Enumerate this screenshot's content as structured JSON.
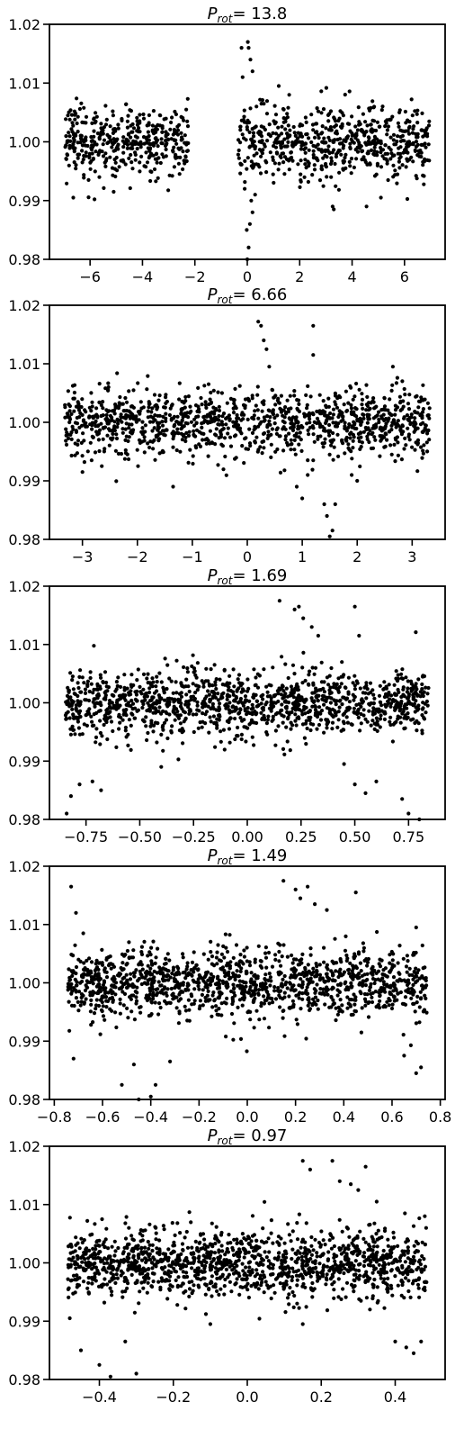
{
  "chart_data": [
    {
      "type": "scatter",
      "title": "P_rot = 13.8",
      "title_symbol": "P",
      "title_sub": "rot",
      "title_value": "= 13.8",
      "xlim": [
        -7.55,
        7.55
      ],
      "ylim": [
        0.98,
        1.02
      ],
      "xticks": [
        -6,
        -4,
        -2,
        0,
        2,
        4,
        6
      ],
      "xtick_labels": [
        "−6",
        "−4",
        "−2",
        "0",
        "2",
        "4",
        "6"
      ],
      "yticks": [
        0.98,
        0.99,
        1.0,
        1.01,
        1.02
      ],
      "ytick_labels": [
        "0.98",
        "0.99",
        "1.00",
        "1.01",
        "1.02"
      ],
      "marker_color": "#000000",
      "point_count": 1050,
      "x_data_ranges": [
        [
          -6.95,
          -2.25
        ],
        [
          -0.35,
          6.95
        ]
      ],
      "baseline_y": 1.0,
      "scatter_sigma": 0.0028,
      "features": [
        {
          "x": 0.02,
          "y": 1.017
        },
        {
          "x": 0.05,
          "y": 1.016
        },
        {
          "x": -0.22,
          "y": 1.016
        },
        {
          "x": -0.18,
          "y": 1.011
        },
        {
          "x": 0.12,
          "y": 1.014
        },
        {
          "x": 0.2,
          "y": 1.012
        },
        {
          "x": 0.35,
          "y": 1.006
        },
        {
          "x": 1.2,
          "y": 1.0095
        },
        {
          "x": 1.6,
          "y": 1.008
        },
        {
          "x": 0.0,
          "y": 0.98
        },
        {
          "x": 0.05,
          "y": 0.982
        },
        {
          "x": -0.02,
          "y": 0.985
        },
        {
          "x": 0.1,
          "y": 0.986
        },
        {
          "x": 0.2,
          "y": 0.988
        },
        {
          "x": 0.15,
          "y": 0.99
        },
        {
          "x": -0.1,
          "y": 0.992
        },
        {
          "x": 0.3,
          "y": 0.991
        },
        {
          "x": 3.3,
          "y": 0.9885
        },
        {
          "x": 4.55,
          "y": 0.989
        },
        {
          "x": -5.1,
          "y": 0.9915
        },
        {
          "x": 5.1,
          "y": 0.9905
        }
      ]
    },
    {
      "type": "scatter",
      "title": "P_rot = 6.66",
      "title_symbol": "P",
      "title_sub": "rot",
      "title_value": "= 6.66",
      "xlim": [
        -3.6,
        3.6
      ],
      "ylim": [
        0.98,
        1.02
      ],
      "xticks": [
        -3,
        -2,
        -1,
        0,
        1,
        2,
        3
      ],
      "xtick_labels": [
        "−3",
        "−2",
        "−1",
        "0",
        "1",
        "2",
        "3"
      ],
      "yticks": [
        0.98,
        0.99,
        1.0,
        1.01,
        1.02
      ],
      "ytick_labels": [
        "0.98",
        "0.99",
        "1.00",
        "1.01",
        "1.02"
      ],
      "marker_color": "#000000",
      "point_count": 1150,
      "x_data_ranges": [
        [
          -3.32,
          3.32
        ]
      ],
      "baseline_y": 1.0,
      "scatter_sigma": 0.0028,
      "features": [
        {
          "x": 0.2,
          "y": 1.0172
        },
        {
          "x": 0.25,
          "y": 1.0165
        },
        {
          "x": 0.3,
          "y": 1.014
        },
        {
          "x": 0.35,
          "y": 1.0125
        },
        {
          "x": 0.4,
          "y": 1.0095
        },
        {
          "x": 1.2,
          "y": 1.0165
        },
        {
          "x": 1.2,
          "y": 1.0115
        },
        {
          "x": 2.65,
          "y": 1.0095
        },
        {
          "x": 0.9,
          "y": 0.989
        },
        {
          "x": 1.0,
          "y": 0.987
        },
        {
          "x": 1.1,
          "y": 0.991
        },
        {
          "x": 1.2,
          "y": 0.9935
        },
        {
          "x": 1.4,
          "y": 0.986
        },
        {
          "x": 1.45,
          "y": 0.984
        },
        {
          "x": 1.55,
          "y": 0.9815
        },
        {
          "x": 1.5,
          "y": 0.9805
        },
        {
          "x": 1.6,
          "y": 0.986
        },
        {
          "x": 1.9,
          "y": 0.991
        },
        {
          "x": 2.0,
          "y": 0.99
        },
        {
          "x": -1.35,
          "y": 0.989
        },
        {
          "x": -3.0,
          "y": 0.9915
        }
      ]
    },
    {
      "type": "scatter",
      "title": "P_rot = 1.69",
      "title_symbol": "P",
      "title_sub": "rot",
      "title_value": "= 1.69",
      "xlim": [
        -0.92,
        0.92
      ],
      "ylim": [
        0.98,
        1.02
      ],
      "xticks": [
        -0.75,
        -0.5,
        -0.25,
        0.0,
        0.25,
        0.5,
        0.75
      ],
      "xtick_labels": [
        "−0.75",
        "−0.50",
        "−0.25",
        "0.00",
        "0.25",
        "0.50",
        "0.75"
      ],
      "yticks": [
        0.98,
        0.99,
        1.0,
        1.01,
        1.02
      ],
      "ytick_labels": [
        "0.98",
        "0.99",
        "1.00",
        "1.01",
        "1.02"
      ],
      "marker_color": "#000000",
      "point_count": 1250,
      "x_data_ranges": [
        [
          -0.845,
          0.845
        ]
      ],
      "baseline_y": 1.0,
      "scatter_sigma": 0.0028,
      "features": [
        {
          "x": 0.15,
          "y": 1.0175
        },
        {
          "x": 0.22,
          "y": 1.016
        },
        {
          "x": 0.24,
          "y": 1.0165
        },
        {
          "x": 0.26,
          "y": 1.0145
        },
        {
          "x": 0.3,
          "y": 1.013
        },
        {
          "x": 0.33,
          "y": 1.0115
        },
        {
          "x": 0.5,
          "y": 1.0165
        },
        {
          "x": 0.52,
          "y": 1.0115
        },
        {
          "x": -0.84,
          "y": 0.981
        },
        {
          "x": -0.82,
          "y": 0.984
        },
        {
          "x": -0.78,
          "y": 0.986
        },
        {
          "x": -0.72,
          "y": 0.9865
        },
        {
          "x": -0.68,
          "y": 0.985
        },
        {
          "x": 0.5,
          "y": 0.986
        },
        {
          "x": 0.55,
          "y": 0.9845
        },
        {
          "x": 0.6,
          "y": 0.9865
        },
        {
          "x": 0.75,
          "y": 0.981
        },
        {
          "x": 0.72,
          "y": 0.9835
        },
        {
          "x": 0.8,
          "y": 0.98
        },
        {
          "x": -0.4,
          "y": 0.989
        },
        {
          "x": 0.45,
          "y": 0.9895
        }
      ]
    },
    {
      "type": "scatter",
      "title": "P_rot = 1.49",
      "title_symbol": "P",
      "title_sub": "rot",
      "title_value": "= 1.49",
      "xlim": [
        -0.82,
        0.82
      ],
      "ylim": [
        0.98,
        1.02
      ],
      "xticks": [
        -0.8,
        -0.6,
        -0.4,
        -0.2,
        0.0,
        0.2,
        0.4,
        0.6,
        0.8
      ],
      "xtick_labels": [
        "−0.8",
        "−0.6",
        "−0.4",
        "−0.2",
        "0.0",
        "0.2",
        "0.4",
        "0.6",
        "0.8"
      ],
      "yticks": [
        0.98,
        0.99,
        1.0,
        1.01,
        1.02
      ],
      "ytick_labels": [
        "0.98",
        "0.99",
        "1.00",
        "1.01",
        "1.02"
      ],
      "marker_color": "#000000",
      "point_count": 1300,
      "x_data_ranges": [
        [
          -0.745,
          0.745
        ]
      ],
      "baseline_y": 1.0,
      "scatter_sigma": 0.0028,
      "features": [
        {
          "x": -0.73,
          "y": 1.0165
        },
        {
          "x": -0.71,
          "y": 1.012
        },
        {
          "x": -0.68,
          "y": 1.0085
        },
        {
          "x": 0.15,
          "y": 1.0175
        },
        {
          "x": 0.2,
          "y": 1.016
        },
        {
          "x": 0.22,
          "y": 1.0145
        },
        {
          "x": 0.25,
          "y": 1.0165
        },
        {
          "x": 0.28,
          "y": 1.0135
        },
        {
          "x": 0.33,
          "y": 1.0125
        },
        {
          "x": 0.45,
          "y": 1.0155
        },
        {
          "x": 0.7,
          "y": 1.0095
        },
        {
          "x": -0.72,
          "y": 0.987
        },
        {
          "x": -0.52,
          "y": 0.9825
        },
        {
          "x": -0.47,
          "y": 0.986
        },
        {
          "x": -0.45,
          "y": 0.98
        },
        {
          "x": -0.4,
          "y": 0.9805
        },
        {
          "x": -0.38,
          "y": 0.9825
        },
        {
          "x": -0.32,
          "y": 0.9865
        },
        {
          "x": 0.65,
          "y": 0.9875
        },
        {
          "x": 0.7,
          "y": 0.9845
        },
        {
          "x": 0.72,
          "y": 0.9855
        }
      ]
    },
    {
      "type": "scatter",
      "title": "P_rot = 0.97",
      "title_symbol": "P",
      "title_sub": "rot",
      "title_value": "= 0.97",
      "xlim": [
        -0.535,
        0.535
      ],
      "ylim": [
        0.98,
        1.02
      ],
      "xticks": [
        -0.4,
        -0.2,
        0.0,
        0.2,
        0.4
      ],
      "xtick_labels": [
        "−0.4",
        "−0.2",
        "0.0",
        "0.2",
        "0.4"
      ],
      "yticks": [
        0.98,
        0.99,
        1.0,
        1.01,
        1.02
      ],
      "ytick_labels": [
        "0.98",
        "0.99",
        "1.00",
        "1.01",
        "1.02"
      ],
      "marker_color": "#000000",
      "point_count": 1350,
      "x_data_ranges": [
        [
          -0.485,
          0.485
        ]
      ],
      "baseline_y": 1.0,
      "scatter_sigma": 0.0028,
      "features": [
        {
          "x": 0.15,
          "y": 1.0175
        },
        {
          "x": 0.17,
          "y": 1.016
        },
        {
          "x": 0.23,
          "y": 1.0175
        },
        {
          "x": 0.25,
          "y": 1.014
        },
        {
          "x": 0.28,
          "y": 1.0135
        },
        {
          "x": 0.32,
          "y": 1.0165
        },
        {
          "x": 0.3,
          "y": 1.0125
        },
        {
          "x": 0.35,
          "y": 1.0105
        },
        {
          "x": 0.48,
          "y": 1.008
        },
        {
          "x": -0.48,
          "y": 0.9905
        },
        {
          "x": -0.45,
          "y": 0.985
        },
        {
          "x": -0.4,
          "y": 0.9825
        },
        {
          "x": -0.37,
          "y": 0.9805
        },
        {
          "x": -0.3,
          "y": 0.981
        },
        {
          "x": -0.33,
          "y": 0.9865
        },
        {
          "x": 0.4,
          "y": 0.9865
        },
        {
          "x": 0.43,
          "y": 0.9855
        },
        {
          "x": 0.45,
          "y": 0.9845
        },
        {
          "x": 0.47,
          "y": 0.9865
        },
        {
          "x": 0.15,
          "y": 0.9895
        },
        {
          "x": -0.1,
          "y": 0.9895
        }
      ]
    }
  ]
}
